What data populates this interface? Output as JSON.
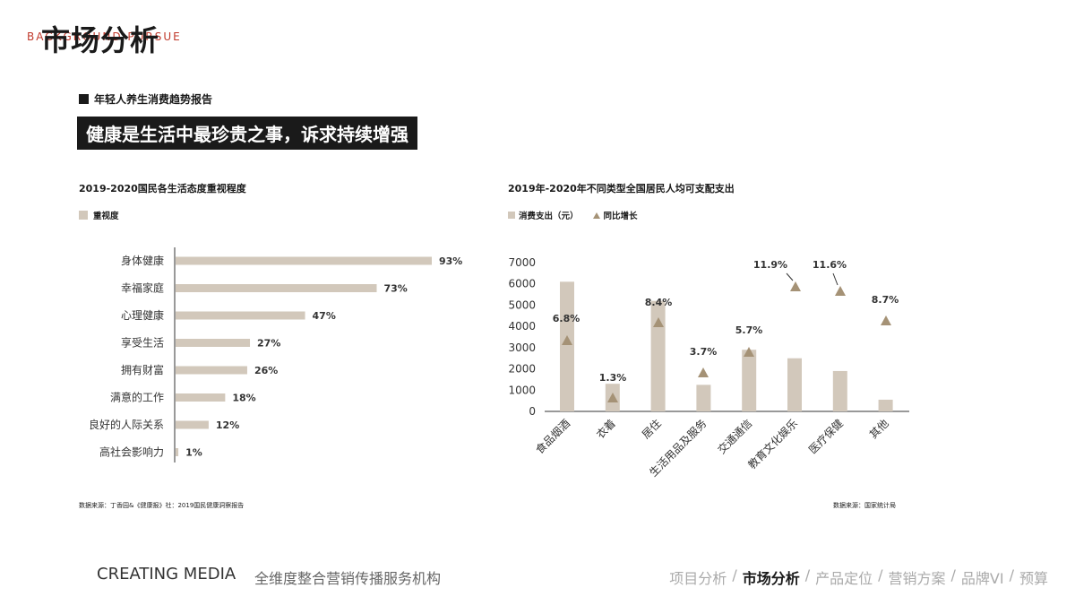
{
  "background_text": "BACKGROUND PURSUE",
  "page_title": "市场分析",
  "section_label": "年轻人养生消费趋势报告",
  "headline": "健康是生活中最珍贵之事，诉求持续增强",
  "left_chart": {
    "title": "2019-2020国民各生活态度重视程度",
    "legend": "重视度",
    "source": "数据来源：丁香园&《健康报》社：2019国民健康洞察报告"
  },
  "right_chart": {
    "title": "2019年-2020年不同类型全国居民人均可支配支出",
    "legend_bar": "消费支出（元）",
    "legend_triangle": "同比增长",
    "source": "数据来源：国家统计局"
  },
  "chart_data": [
    {
      "type": "bar",
      "orientation": "horizontal",
      "title": "2019-2020国民各生活态度重视程度",
      "categories": [
        "身体健康",
        "幸福家庭",
        "心理健康",
        "享受生活",
        "拥有财富",
        "满意的工作",
        "良好的人际关系",
        "高社会影响力"
      ],
      "values": [
        93,
        73,
        47,
        27,
        26,
        18,
        12,
        1
      ],
      "labels": [
        "93%",
        "73%",
        "47%",
        "27%",
        "26%",
        "18%",
        "12%",
        "1%"
      ],
      "series": [
        {
          "name": "重视度",
          "values": [
            93,
            73,
            47,
            27,
            26,
            18,
            12,
            1
          ]
        }
      ],
      "xlim": [
        0,
        100
      ],
      "colors": {
        "bar": "#d2c8bb"
      }
    },
    {
      "type": "bar",
      "title": "2019年-2020年不同类型全国居民人均可支配支出",
      "categories": [
        "食品烟酒",
        "衣着",
        "居住",
        "生活用品及服务",
        "交通通信",
        "教育文化娱乐",
        "医疗保健",
        "其他"
      ],
      "series": [
        {
          "name": "消费支出（元）",
          "values": [
            6100,
            1300,
            5200,
            1250,
            2900,
            2500,
            1900,
            550
          ]
        },
        {
          "name": "同比增长",
          "values": [
            6.8,
            1.3,
            8.4,
            3.7,
            5.7,
            11.9,
            11.6,
            8.7
          ],
          "labels": [
            "6.8%",
            "1.3%",
            "8.4%",
            "3.7%",
            "5.7%",
            "11.9%",
            "11.6%",
            "8.7%"
          ]
        }
      ],
      "yticks": [
        "7000",
        "6000",
        "5000",
        "4000",
        "3000",
        "2000",
        "1000",
        "0"
      ],
      "ylim": [
        0,
        7000
      ],
      "colors": {
        "bar": "#d2c8bb",
        "triangle": "#a59276"
      }
    }
  ],
  "footer": {
    "brand": "CREATING MEDIA",
    "subtitle": "全维度整合营销传播服务机构",
    "nav": [
      "项目分析",
      "市场分析",
      "产品定位",
      "营销方案",
      "品牌VI",
      "预算"
    ]
  }
}
